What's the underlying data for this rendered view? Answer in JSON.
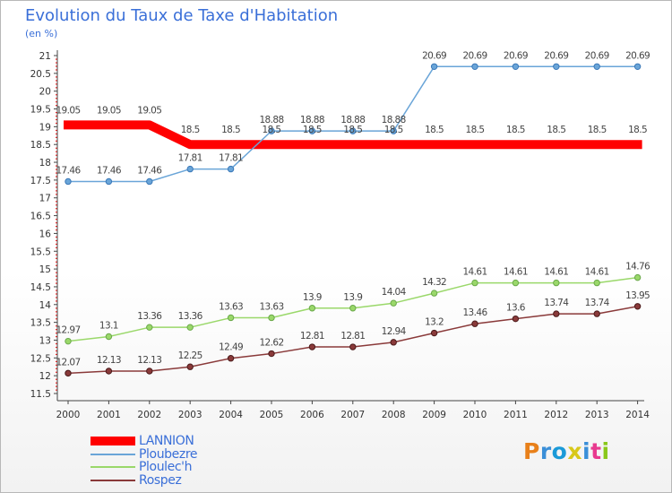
{
  "header": {
    "title": "Evolution du Taux de Taxe d'Habitation",
    "subtitle": "(en %)"
  },
  "brand": {
    "letters": [
      "P",
      "r",
      "o",
      "x",
      "i",
      "t",
      "i"
    ],
    "colors": [
      "#e8801a",
      "#3a8fd8",
      "#1a9ad8",
      "#d8c81a",
      "#3a8fd8",
      "#e83a8f",
      "#8ac81a"
    ]
  },
  "chart_data": {
    "type": "line",
    "title": "Evolution du Taux de Taxe d'Habitation",
    "subtitle": "(en %)",
    "xlabel": "",
    "ylabel": "",
    "x": [
      "2000",
      "2001",
      "2002",
      "2003",
      "2004",
      "2005",
      "2006",
      "2007",
      "2008",
      "2009",
      "2010",
      "2011",
      "2012",
      "2013",
      "2014"
    ],
    "ylim": [
      11.5,
      21
    ],
    "yticks": [
      "11.5",
      "12",
      "12.5",
      "13",
      "13.5",
      "14",
      "14.5",
      "15",
      "15.5",
      "16",
      "16.5",
      "17",
      "17.5",
      "18",
      "18.5",
      "19",
      "19.5",
      "20",
      "20.5",
      "21"
    ],
    "grid": false,
    "legend_position": "bottom-left",
    "series": [
      {
        "name": "LANNION",
        "color": "#ff0000",
        "values": [
          19.05,
          19.05,
          19.05,
          18.5,
          18.5,
          18.5,
          18.5,
          18.5,
          18.5,
          18.5,
          18.5,
          18.5,
          18.5,
          18.5,
          18.5
        ],
        "labels": [
          "19.05",
          "19.05",
          "19.05",
          "18.5",
          "18.5",
          "18.5",
          "18.5",
          "18.5",
          "18.5",
          "18.5",
          "18.5",
          "18.5",
          "18.5",
          "18.5",
          "18.5"
        ]
      },
      {
        "name": "Ploubezre",
        "color": "#6aa5d8",
        "values": [
          17.46,
          17.46,
          17.46,
          17.81,
          17.81,
          18.88,
          18.88,
          18.88,
          18.88,
          20.69,
          20.69,
          20.69,
          20.69,
          20.69,
          20.69
        ],
        "labels": [
          "17.46",
          "17.46",
          "17.46",
          "17.81",
          "17.81",
          "18.88",
          "18.88",
          "18.88",
          "18.88",
          "20.69",
          "20.69",
          "20.69",
          "20.69",
          "20.69",
          "20.69"
        ]
      },
      {
        "name": "Ploulec'h",
        "color": "#9ad86a",
        "values": [
          12.97,
          13.1,
          13.36,
          13.36,
          13.63,
          13.63,
          13.9,
          13.9,
          14.04,
          14.32,
          14.61,
          14.61,
          14.61,
          14.61,
          14.76
        ],
        "labels": [
          "12.97",
          "13.1",
          "13.36",
          "13.36",
          "13.63",
          "13.63",
          "13.9",
          "13.9",
          "14.04",
          "14.32",
          "14.61",
          "14.61",
          "14.61",
          "14.61",
          "14.76"
        ]
      },
      {
        "name": "Rospez",
        "color": "#8a3a3a",
        "values": [
          12.07,
          12.13,
          12.13,
          12.25,
          12.49,
          12.62,
          12.81,
          12.81,
          12.94,
          13.2,
          13.46,
          13.6,
          13.74,
          13.74,
          13.95
        ],
        "labels": [
          "12.07",
          "12.13",
          "12.13",
          "12.25",
          "12.49",
          "12.62",
          "12.81",
          "12.81",
          "12.94",
          "13.2",
          "13.46",
          "13.6",
          "13.74",
          "13.74",
          "13.95"
        ]
      }
    ]
  }
}
